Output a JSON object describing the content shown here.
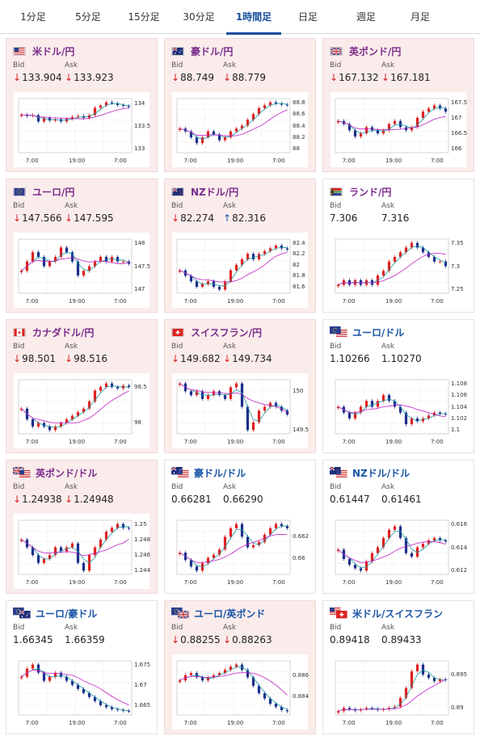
{
  "tabs": [
    {
      "label": "1分足",
      "active": false
    },
    {
      "label": "5分足",
      "active": false
    },
    {
      "label": "15分足",
      "active": false
    },
    {
      "label": "30分足",
      "active": false
    },
    {
      "label": "1時間足",
      "active": true
    },
    {
      "label": "日足",
      "active": false
    },
    {
      "label": "週足",
      "active": false
    },
    {
      "label": "月足",
      "active": false
    }
  ],
  "labels": {
    "bid": "Bid",
    "ask": "Ask"
  },
  "cards": [
    {
      "name": "usd-jpy",
      "pair": "米ドル/円",
      "flag": "us",
      "bid": "133.904",
      "ask": "133.923",
      "bid_dir": "down",
      "ask_dir": "down",
      "pink": true,
      "pair_color": "purple",
      "yticks": [
        "134",
        "133.5",
        "133"
      ],
      "xticks": [
        "7:00",
        "19:00",
        "7:00"
      ],
      "series": [
        133.75,
        133.72,
        133.74,
        133.6,
        133.68,
        133.62,
        133.65,
        133.6,
        133.66,
        133.7,
        133.72,
        133.68,
        133.74,
        133.9,
        133.95,
        134.02,
        134.0,
        133.96,
        133.94,
        133.92
      ]
    },
    {
      "name": "aud-jpy",
      "pair": "豪ドル/円",
      "flag": "au",
      "bid": "88.749",
      "ask": "88.779",
      "bid_dir": "down",
      "ask_dir": "down",
      "pink": true,
      "pair_color": "purple",
      "yticks": [
        "88.8",
        "88.6",
        "88.4",
        "88.2",
        "88"
      ],
      "xticks": [
        "7:00",
        "19:00",
        "7:00"
      ],
      "series": [
        88.35,
        88.3,
        88.2,
        88.1,
        88.2,
        88.3,
        88.25,
        88.15,
        88.2,
        88.3,
        88.35,
        88.4,
        88.5,
        88.6,
        88.7,
        88.75,
        88.8,
        88.78,
        88.76,
        88.75
      ]
    },
    {
      "name": "gbp-jpy",
      "pair": "英ポンド/円",
      "flag": "gb",
      "bid": "167.132",
      "ask": "167.181",
      "bid_dir": "down",
      "ask_dir": "down",
      "pink": true,
      "pair_color": "purple",
      "yticks": [
        "167.5",
        "167",
        "166.5",
        "166"
      ],
      "xticks": [
        "7:00",
        "19:00",
        "7:00"
      ],
      "series": [
        166.9,
        166.8,
        166.6,
        166.4,
        166.5,
        166.7,
        166.6,
        166.5,
        166.6,
        166.8,
        166.9,
        166.7,
        166.6,
        166.7,
        167.0,
        167.2,
        167.3,
        167.4,
        167.3,
        167.2
      ]
    },
    {
      "name": "eur-jpy",
      "pair": "ユーロ/円",
      "flag": "eu",
      "bid": "147.566",
      "ask": "147.595",
      "bid_dir": "down",
      "ask_dir": "down",
      "pink": true,
      "pair_color": "purple",
      "yticks": [
        "148",
        "147.5",
        "147"
      ],
      "xticks": [
        "7:00",
        "19:00",
        "7:00"
      ],
      "series": [
        147.4,
        147.6,
        147.8,
        147.7,
        147.5,
        147.6,
        147.7,
        147.9,
        147.8,
        147.6,
        147.3,
        147.4,
        147.5,
        147.6,
        147.7,
        147.6,
        147.7,
        147.6,
        147.6,
        147.55
      ]
    },
    {
      "name": "nzd-jpy",
      "pair": "NZドル/円",
      "flag": "nz",
      "bid": "82.274",
      "ask": "82.316",
      "bid_dir": "down",
      "ask_dir": "up",
      "pink": true,
      "pair_color": "purple",
      "yticks": [
        "82.4",
        "82.2",
        "82",
        "81.8",
        "81.6"
      ],
      "xticks": [
        "7:00",
        "19:00",
        "7:00"
      ],
      "series": [
        81.9,
        81.8,
        81.7,
        81.6,
        81.65,
        81.7,
        81.6,
        81.55,
        81.7,
        81.9,
        82.0,
        82.1,
        82.2,
        82.1,
        82.2,
        82.25,
        82.3,
        82.35,
        82.3,
        82.28
      ]
    },
    {
      "name": "zar-jpy",
      "pair": "ランド/円",
      "flag": "za",
      "bid": "7.306",
      "ask": "7.316",
      "bid_dir": "none",
      "ask_dir": "none",
      "pink": false,
      "pair_color": "purple",
      "yticks": [
        "7.35",
        "7.3",
        "7.25"
      ],
      "xticks": [
        "7:00",
        "19:00",
        "7:00"
      ],
      "series": [
        7.26,
        7.27,
        7.26,
        7.27,
        7.26,
        7.27,
        7.26,
        7.28,
        7.29,
        7.31,
        7.32,
        7.33,
        7.34,
        7.35,
        7.34,
        7.33,
        7.32,
        7.31,
        7.31,
        7.3
      ]
    },
    {
      "name": "cad-jpy",
      "pair": "カナダドル/円",
      "flag": "ca",
      "bid": "98.501",
      "ask": "98.516",
      "bid_dir": "down",
      "ask_dir": "down",
      "pink": true,
      "pair_color": "purple",
      "yticks": [
        "98.5",
        "98"
      ],
      "xticks": [
        "7:00",
        "19:00",
        "7:00"
      ],
      "series": [
        98.2,
        98.05,
        97.95,
        98.0,
        97.95,
        97.9,
        97.95,
        98.0,
        98.05,
        98.1,
        98.15,
        98.2,
        98.3,
        98.45,
        98.5,
        98.55,
        98.5,
        98.48,
        98.52,
        98.5
      ]
    },
    {
      "name": "chf-jpy",
      "pair": "スイスフラン/円",
      "flag": "ch",
      "bid": "149.682",
      "ask": "149.734",
      "bid_dir": "down",
      "ask_dir": "down",
      "pink": true,
      "pair_color": "purple",
      "yticks": [
        "150",
        "149.5"
      ],
      "xticks": [
        "7:00",
        "19:00",
        "7:00"
      ],
      "series": [
        150.1,
        150.0,
        149.95,
        150.0,
        149.9,
        149.95,
        150.0,
        149.95,
        149.9,
        150.05,
        150.1,
        149.8,
        149.5,
        149.6,
        149.75,
        149.8,
        149.85,
        149.8,
        149.75,
        149.7
      ]
    },
    {
      "name": "eur-usd",
      "pair": "ユーロ/ドル",
      "flag": "euus",
      "bid": "1.10266",
      "ask": "1.10270",
      "bid_dir": "none",
      "ask_dir": "none",
      "pink": false,
      "pair_color": "blue",
      "yticks": [
        "1.108",
        "1.106",
        "1.104",
        "1.102",
        "1.1"
      ],
      "xticks": [
        "7:00",
        "19:00",
        "7:00"
      ],
      "series": [
        1.104,
        1.103,
        1.102,
        1.103,
        1.104,
        1.105,
        1.104,
        1.105,
        1.106,
        1.105,
        1.104,
        1.103,
        1.101,
        1.102,
        1.1015,
        1.102,
        1.1025,
        1.103,
        1.1028,
        1.1027
      ]
    },
    {
      "name": "gbp-usd",
      "pair": "英ポンド/ドル",
      "flag": "gbus",
      "bid": "1.24938",
      "ask": "1.24948",
      "bid_dir": "down",
      "ask_dir": "down",
      "pink": true,
      "pair_color": "purple",
      "yticks": [
        "1.25",
        "1.248",
        "1.246",
        "1.244"
      ],
      "xticks": [
        "7:00",
        "19:00",
        "7:00"
      ],
      "series": [
        1.248,
        1.247,
        1.246,
        1.245,
        1.2455,
        1.246,
        1.247,
        1.2465,
        1.247,
        1.2475,
        1.245,
        1.244,
        1.246,
        1.247,
        1.248,
        1.249,
        1.2495,
        1.25,
        1.2495,
        1.2494
      ]
    },
    {
      "name": "aud-usd",
      "pair": "豪ドル/ドル",
      "flag": "auus",
      "bid": "0.66281",
      "ask": "0.66290",
      "bid_dir": "none",
      "ask_dir": "none",
      "pink": false,
      "pair_color": "blue",
      "yticks": [
        "0.662",
        "0.66"
      ],
      "xticks": [
        "7:00",
        "19:00",
        "7:00"
      ],
      "series": [
        0.6605,
        0.6598,
        0.6592,
        0.6588,
        0.6595,
        0.66,
        0.6603,
        0.6608,
        0.662,
        0.6628,
        0.6632,
        0.662,
        0.661,
        0.6612,
        0.6615,
        0.6622,
        0.6628,
        0.6632,
        0.663,
        0.6628
      ]
    },
    {
      "name": "nzd-usd",
      "pair": "NZドル/ドル",
      "flag": "nzus",
      "bid": "0.61447",
      "ask": "0.61461",
      "bid_dir": "none",
      "ask_dir": "none",
      "pink": false,
      "pair_color": "blue",
      "yticks": [
        "0.616",
        "0.614",
        "0.612"
      ],
      "xticks": [
        "7:00",
        "19:00",
        "7:00"
      ],
      "series": [
        0.6138,
        0.613,
        0.6125,
        0.6122,
        0.612,
        0.6128,
        0.6135,
        0.614,
        0.6148,
        0.6155,
        0.6158,
        0.6148,
        0.6135,
        0.6132,
        0.614,
        0.6143,
        0.6146,
        0.6148,
        0.6146,
        0.6145
      ]
    },
    {
      "name": "eur-aud",
      "pair": "ユーロ/豪ドル",
      "flag": "euau",
      "bid": "1.66345",
      "ask": "1.66359",
      "bid_dir": "none",
      "ask_dir": "none",
      "pink": false,
      "pair_color": "blue",
      "yticks": [
        "1.675",
        "1.67",
        "1.665"
      ],
      "xticks": [
        "7:00",
        "19:00",
        "7:00"
      ],
      "series": [
        1.672,
        1.674,
        1.675,
        1.673,
        1.671,
        1.672,
        1.673,
        1.672,
        1.671,
        1.67,
        1.669,
        1.668,
        1.667,
        1.666,
        1.665,
        1.6645,
        1.664,
        1.6638,
        1.6636,
        1.6635
      ]
    },
    {
      "name": "eur-gbp",
      "pair": "ユーロ/英ポンド",
      "flag": "eugb",
      "bid": "0.88255",
      "ask": "0.88263",
      "bid_dir": "down",
      "ask_dir": "down",
      "pink": true,
      "pair_color": "blue",
      "yticks": [
        "0.886",
        "0.884"
      ],
      "xticks": [
        "7:00",
        "19:00",
        "7:00"
      ],
      "series": [
        0.8855,
        0.886,
        0.8862,
        0.8858,
        0.8855,
        0.8858,
        0.886,
        0.8862,
        0.8865,
        0.8868,
        0.887,
        0.8865,
        0.8858,
        0.885,
        0.8843,
        0.8838,
        0.8833,
        0.883,
        0.8827,
        0.8826
      ]
    },
    {
      "name": "usd-chf",
      "pair": "米ドル/スイスフラン",
      "flag": "usch",
      "bid": "0.89418",
      "ask": "0.89433",
      "bid_dir": "none",
      "ask_dir": "none",
      "pink": false,
      "pair_color": "blue",
      "yticks": [
        "0.895",
        "0.89"
      ],
      "xticks": [
        "7:00",
        "19:00",
        "7:00"
      ],
      "series": [
        0.8895,
        0.89,
        0.8898,
        0.8896,
        0.8898,
        0.89,
        0.8899,
        0.8897,
        0.8898,
        0.89,
        0.8902,
        0.8915,
        0.893,
        0.8955,
        0.8965,
        0.895,
        0.8945,
        0.894,
        0.8943,
        0.8942
      ]
    }
  ],
  "colors": {
    "up": "#e02020",
    "down": "#1a2f8a",
    "ma_short": "#1a9aa0",
    "ma_long": "#c020c8",
    "pink_bg": "#fbecec",
    "active_tab": "#1a4f9c"
  }
}
